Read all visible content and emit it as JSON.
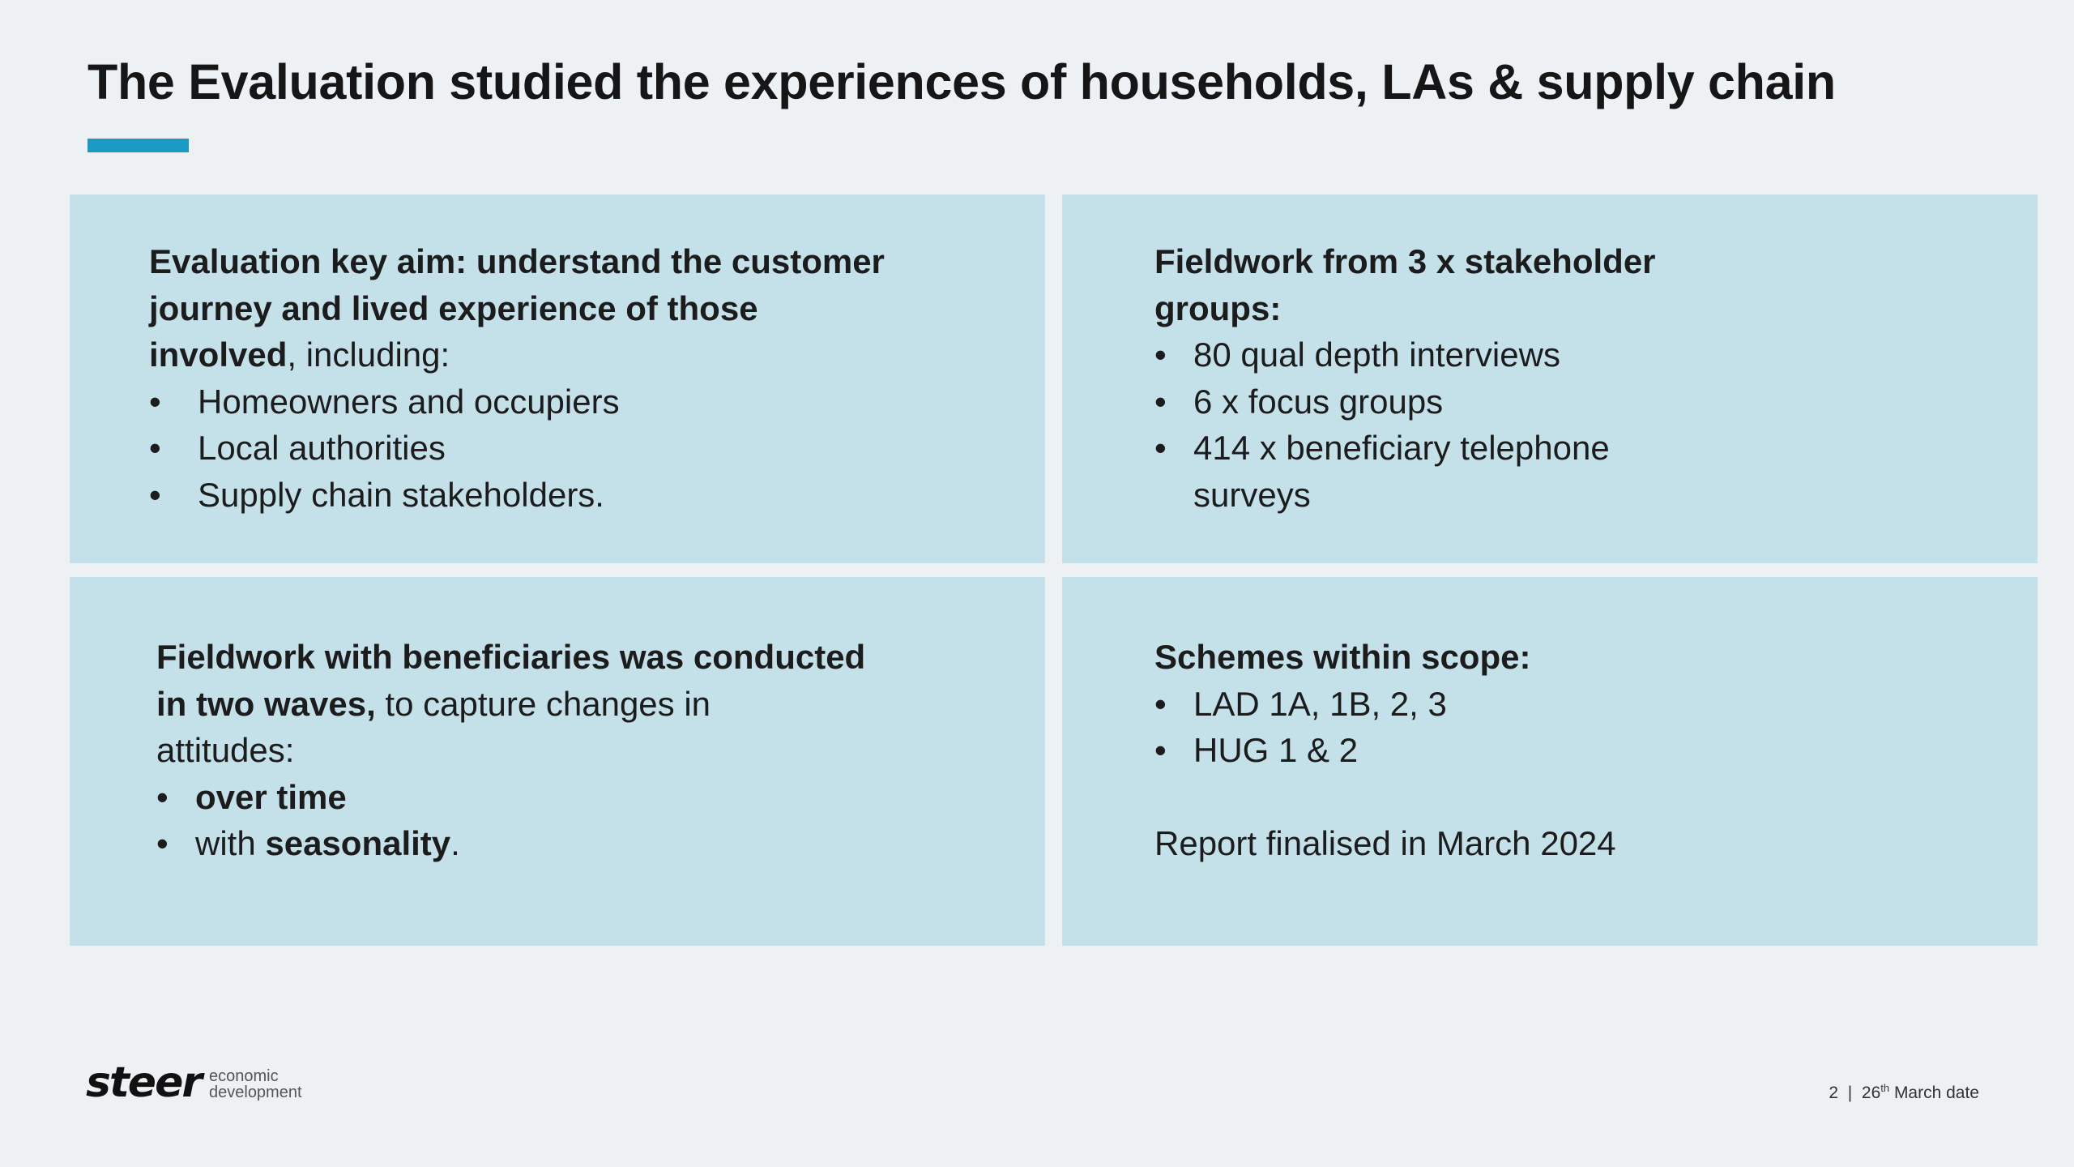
{
  "title": "The Evaluation studied the experiences of households, LAs & supply chain",
  "colors": {
    "accent": "#1b9ac6",
    "panel": "#c4e1ea",
    "background": "#edf1f4"
  },
  "panels": {
    "key_aim": {
      "heading_line1": "Evaluation key aim: understand the customer",
      "heading_line2": "journey and lived experience of those",
      "heading_bold_end": "involved",
      "heading_tail": ", including:",
      "bullet_glyph": "•",
      "items": [
        "Homeowners and occupiers",
        "Local authorities",
        "Supply chain stakeholders."
      ]
    },
    "fieldwork_groups": {
      "heading_line1": "Fieldwork from 3 x stakeholder",
      "heading_line2": "groups:",
      "items": [
        "80 qual depth interviews",
        "6 x focus groups",
        "414 x beneficiary telephone surveys"
      ]
    },
    "waves": {
      "heading_bold_line1": "Fieldwork with beneficiaries was conducted",
      "heading_bold_line2": "in two waves,",
      "heading_tail": " to capture changes in",
      "heading_line3": "attitudes:",
      "item1_bold": "over time",
      "item2_prefix": "with ",
      "item2_bold": "seasonality",
      "item2_suffix": "."
    },
    "schemes": {
      "heading": "Schemes within scope:",
      "items": [
        "LAD 1A, 1B, 2, 3",
        "HUG 1 & 2"
      ],
      "report_note": "Report finalised in March 2024"
    }
  },
  "logo": {
    "word": "steer",
    "sub_line1": "economic",
    "sub_line2": "development"
  },
  "footer": {
    "page_number": "2",
    "separator": "|",
    "date_day": "26",
    "date_suffix": "th",
    "date_rest": "March date"
  }
}
